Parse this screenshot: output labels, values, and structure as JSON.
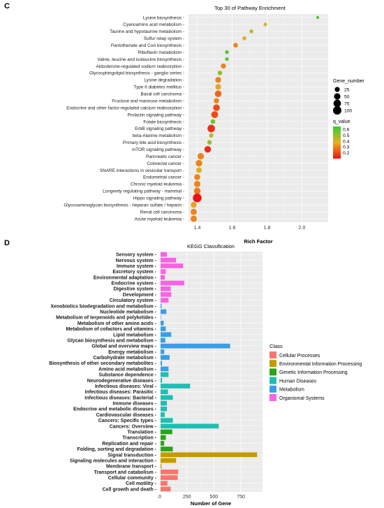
{
  "panel_a_letter": "C",
  "panel_b_letter": "D",
  "chart_data": [
    {
      "type": "scatter",
      "title": "Top 30 of Pathway Enrichment",
      "xlabel": "Rich Factor",
      "ylabel": "",
      "xlim": [
        1.35,
        2.15
      ],
      "x_ticks": [
        "1.4",
        "1.6",
        "1.8",
        "2.0"
      ],
      "grid": true,
      "categories": [
        "Lysine biosynthesis",
        "Cyanoamino acid metabolism",
        "Taurine and hypotaurine metabolism",
        "Sulfur relay system",
        "Pantothenate and CoA biosynthesis",
        "Riboflavin metabolism",
        "Valine, leucine and isoleucine biosynthesis",
        "Aldosterone-regulated sodium reabsorption",
        "Glycosphingolipid biosynthesis - ganglio series",
        "Lysine degradation",
        "Type II diabetes mellitus",
        "Basal cell carcinoma",
        "Fructose and mannose metabolism",
        "Endocrine and other factor-regulated calcium reabsorption",
        "Prolactin signaling pathway",
        "Folate biosynthesis",
        "ErbB signaling pathway",
        "beta-Alanine metabolism",
        "Primary bile acid biosynthesis",
        "mTOR signaling pathway",
        "Pancreatic cancer",
        "Colorectal cancer",
        "SNARE interactions in vesicular transport",
        "Endometrial cancer",
        "Chronic myeloid leukemia",
        "Longevity regulating pathway - mammal",
        "Hippo signaling pathway",
        "Glycosaminoglycan biosynthesis - heparan sulfate / heparin",
        "Renal cell carcinoma",
        "Acute myeloid leukemia"
      ],
      "rich_factor": [
        2.09,
        1.79,
        1.71,
        1.67,
        1.62,
        1.57,
        1.57,
        1.55,
        1.53,
        1.52,
        1.52,
        1.52,
        1.51,
        1.51,
        1.5,
        1.49,
        1.48,
        1.48,
        1.47,
        1.46,
        1.42,
        1.41,
        1.41,
        1.4,
        1.4,
        1.4,
        1.4,
        1.38,
        1.38,
        1.38
      ],
      "gene_number": [
        4,
        8,
        10,
        13,
        20,
        10,
        9,
        26,
        20,
        40,
        35,
        55,
        30,
        55,
        60,
        20,
        75,
        16,
        18,
        55,
        50,
        52,
        35,
        42,
        50,
        55,
        110,
        40,
        45,
        48
      ],
      "q_value": [
        0.6,
        0.4,
        0.45,
        0.4,
        0.3,
        0.6,
        0.6,
        0.3,
        0.5,
        0.3,
        0.35,
        0.25,
        0.3,
        0.2,
        0.2,
        0.55,
        0.15,
        0.45,
        0.5,
        0.15,
        0.3,
        0.3,
        0.4,
        0.3,
        0.3,
        0.28,
        0.1,
        0.35,
        0.3,
        0.3
      ],
      "size_legend_title": "Gene_number",
      "size_legend": [
        25,
        50,
        75,
        100
      ],
      "size_legend_labels": [
        "25",
        "50",
        "75",
        "100"
      ],
      "color_legend_title": "q_value",
      "color_legend_ticks": [
        "0.6",
        "0.5",
        "0.4",
        "0.3",
        "0.2"
      ],
      "color_range": [
        0.1,
        0.65
      ],
      "colors": {
        "high_q": "#33cc33",
        "mid_q": "#e8b020",
        "low_q": "#ee1111",
        "panel_bg": "#ebebeb",
        "grid": "#ffffff"
      },
      "legend_position": "right"
    },
    {
      "type": "bar",
      "orientation": "horizontal",
      "title": "KEGG Classification",
      "xlabel": "Number of Gene",
      "ylabel": "",
      "xlim": [
        0,
        950
      ],
      "x_ticks": [
        "0",
        "250",
        "500",
        "750"
      ],
      "grid": true,
      "categories": [
        "Sensory system",
        "Nervous system",
        "Immune system",
        "Excretory system",
        "Environmental adaptation",
        "Endocrine system",
        "Digestive system",
        "Development",
        "Circulatory system",
        "Xenobiotics biodegradation and metabolism",
        "Nucleotide metabolism",
        "Metabolism of terpenoids and polyketides",
        "Metabolism of other amino acids",
        "Metabolism of cofactors and vitamins",
        "Lipid metabolism",
        "Glycan biosynthesis and metabolism",
        "Global and overview maps",
        "Energy metabolism",
        "Carbohydrate metabolism",
        "Biosynthesis of other secondary metabolites",
        "Amino acid metabolism",
        "Substance dependence",
        "Neurodegenerative diseases",
        "Infectious diseases: Viral",
        "Infectious diseases: Parasitic",
        "Infectious diseases: Bacterial",
        "Immune diseases",
        "Endocrine and metabolic diseases",
        "Cardiovascular diseases",
        "Cancers: Specific types",
        "Cancers: Overview",
        "Translation",
        "Transcription",
        "Replication and repair",
        "Folding, sorting and degradation",
        "Signal transduction",
        "Signaling molecules and interaction",
        "Membrane transport",
        "Transport and catabolism",
        "Cellular community",
        "Cell motility",
        "Cell growth and death"
      ],
      "values": [
        65,
        150,
        215,
        55,
        45,
        225,
        100,
        105,
        80,
        15,
        60,
        10,
        35,
        55,
        105,
        50,
        650,
        40,
        90,
        20,
        80,
        80,
        20,
        280,
        75,
        120,
        65,
        65,
        45,
        120,
        545,
        115,
        55,
        40,
        120,
        900,
        150,
        15,
        170,
        165,
        70,
        100
      ],
      "class": [
        "Organismal Systems",
        "Organismal Systems",
        "Organismal Systems",
        "Organismal Systems",
        "Organismal Systems",
        "Organismal Systems",
        "Organismal Systems",
        "Organismal Systems",
        "Organismal Systems",
        "Metabolism",
        "Metabolism",
        "Metabolism",
        "Metabolism",
        "Metabolism",
        "Metabolism",
        "Metabolism",
        "Metabolism",
        "Metabolism",
        "Metabolism",
        "Metabolism",
        "Metabolism",
        "Human Diseases",
        "Human Diseases",
        "Human Diseases",
        "Human Diseases",
        "Human Diseases",
        "Human Diseases",
        "Human Diseases",
        "Human Diseases",
        "Human Diseases",
        "Human Diseases",
        "Genetic Information Processing",
        "Genetic Information Processing",
        "Genetic Information Processing",
        "Genetic Information Processing",
        "Environmental Information Processing",
        "Environmental Information Processing",
        "Environmental Information Processing",
        "Cellular Processes",
        "Cellular Processes",
        "Cellular Processes",
        "Cellular Processes"
      ],
      "legend_title": "Class",
      "legend": [
        {
          "name": "Cellular Processes",
          "color": "#f8766d"
        },
        {
          "name": "Environmental Information Processing",
          "color": "#c49a00"
        },
        {
          "name": "Genetic Information Processing",
          "color": "#2aa418"
        },
        {
          "name": "Human Diseases",
          "color": "#20bdb3"
        },
        {
          "name": "Metabolism",
          "color": "#3a9ee8"
        },
        {
          "name": "Organismal Systems",
          "color": "#f564e3"
        }
      ],
      "legend_position": "right"
    }
  ]
}
